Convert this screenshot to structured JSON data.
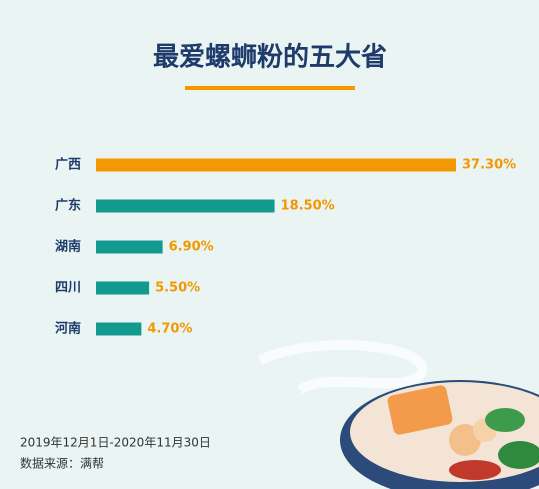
{
  "chart_data": {
    "type": "bar",
    "orientation": "horizontal",
    "title": "最爱螺蛳粉的五大省",
    "categories": [
      "广西",
      "广东",
      "湖南",
      "四川",
      "河南"
    ],
    "values": [
      37.3,
      18.5,
      6.9,
      5.5,
      4.7
    ],
    "value_labels": [
      "37.30%",
      "18.50%",
      "6.90%",
      "5.50%",
      "4.70%"
    ],
    "colors": [
      "#f39800",
      "#129a8e",
      "#129a8e",
      "#129a8e",
      "#129a8e"
    ],
    "value_label_color": "#f39800",
    "footnotes": [
      "2019年12月1日-2020年11月30日",
      "数据来源：满帮"
    ]
  }
}
